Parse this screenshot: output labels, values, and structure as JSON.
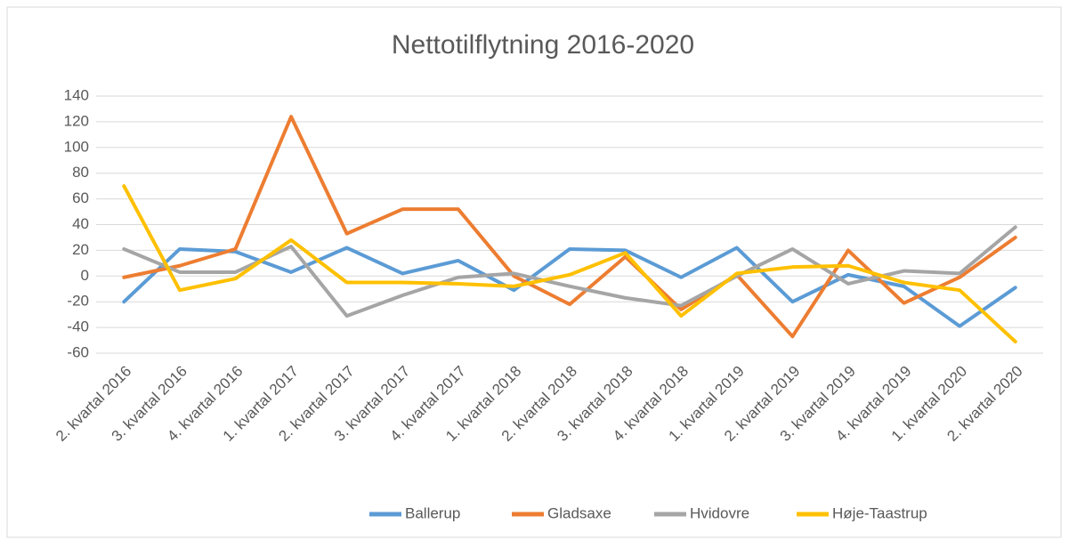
{
  "chart_data": {
    "type": "line",
    "title": "Nettotilflytning 2016-2020",
    "categories": [
      "2. kvartal 2016",
      "3. kvartal 2016",
      "4. kvartal 2016",
      "1. kvartal 2017",
      "2. kvartal 2017",
      "3. kvartal 2017",
      "4. kvartal 2017",
      "1. kvartal 2018",
      "2. kvartal 2018",
      "3. kvartal 2018",
      "4. kvartal 2018",
      "1. kvartal 2019",
      "2. kvartal 2019",
      "3. kvartal 2019",
      "4. kvartal 2019",
      "1. kvartal 2020",
      "2. kvartal 2020"
    ],
    "series": [
      {
        "name": "Ballerup",
        "color": "#5b9bd5",
        "values": [
          -20,
          21,
          19,
          3,
          22,
          2,
          12,
          -11,
          21,
          20,
          -1,
          22,
          -20,
          1,
          -8,
          -39,
          -9
        ]
      },
      {
        "name": "Gladsaxe",
        "color": "#ed7d31",
        "values": [
          -1,
          8,
          21,
          124,
          33,
          52,
          52,
          0,
          -22,
          15,
          -26,
          1,
          -47,
          20,
          -21,
          -1,
          30
        ]
      },
      {
        "name": "Hvidovre",
        "color": "#a5a5a5",
        "values": [
          21,
          3,
          3,
          23,
          -31,
          -15,
          -1,
          2,
          -8,
          -17,
          -23,
          0,
          21,
          -6,
          4,
          2,
          38
        ]
      },
      {
        "name": "Høje-Taastrup",
        "color": "#ffc000",
        "values": [
          70,
          -11,
          -2,
          28,
          -5,
          -5,
          -6,
          -8,
          1,
          18,
          -31,
          2,
          7,
          8,
          -5,
          -11,
          -51
        ]
      }
    ],
    "ylim": [
      -60,
      140
    ],
    "yticks": [
      -60,
      -40,
      -20,
      0,
      20,
      40,
      60,
      80,
      100,
      120,
      140
    ],
    "grid": true,
    "legend": "bottom"
  }
}
